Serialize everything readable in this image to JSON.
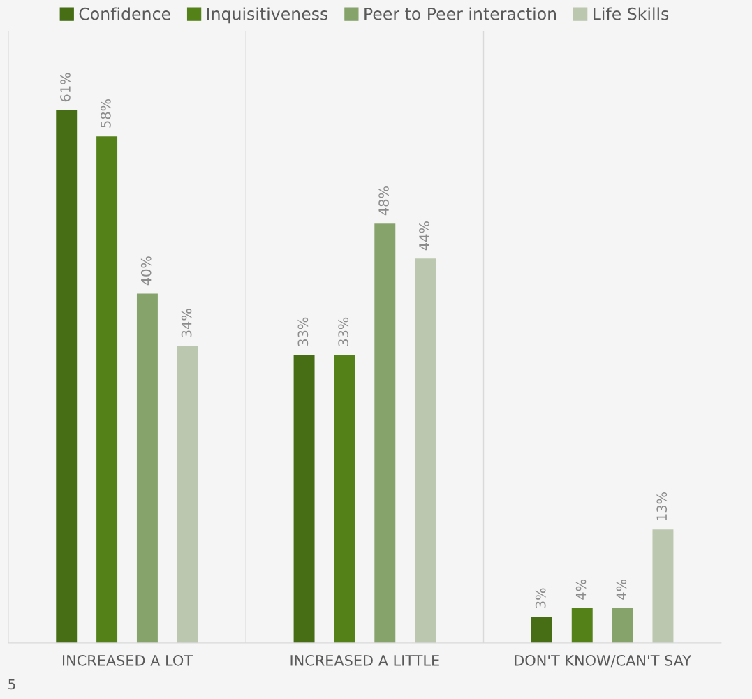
{
  "chart_data": {
    "type": "bar",
    "categories": [
      "INCREASED A LOT",
      "INCREASED A LITTLE",
      "DON'T KNOW/CAN'T SAY"
    ],
    "series": [
      {
        "name": "Confidence",
        "color": "#476e15",
        "values": [
          61,
          33,
          3
        ],
        "value_labels": [
          "61%",
          "33%",
          "3%"
        ]
      },
      {
        "name": "Inquisitiveness",
        "color": "#548219",
        "values": [
          58,
          33,
          4
        ],
        "value_labels": [
          "58%",
          "33%",
          "4%"
        ]
      },
      {
        "name": "Peer to Peer interaction",
        "color": "#86a36c",
        "values": [
          40,
          48,
          4
        ],
        "value_labels": [
          "40%",
          "48%",
          "4%"
        ]
      },
      {
        "name": "Life Skills",
        "color": "#bbc7ae",
        "values": [
          34,
          44,
          13
        ],
        "value_labels": [
          "34%",
          "44%",
          "13%"
        ]
      }
    ],
    "ylim": [
      0,
      70
    ],
    "grid": "x",
    "legend": "top",
    "tick_labels": "x",
    "annotations": [
      "5"
    ]
  }
}
